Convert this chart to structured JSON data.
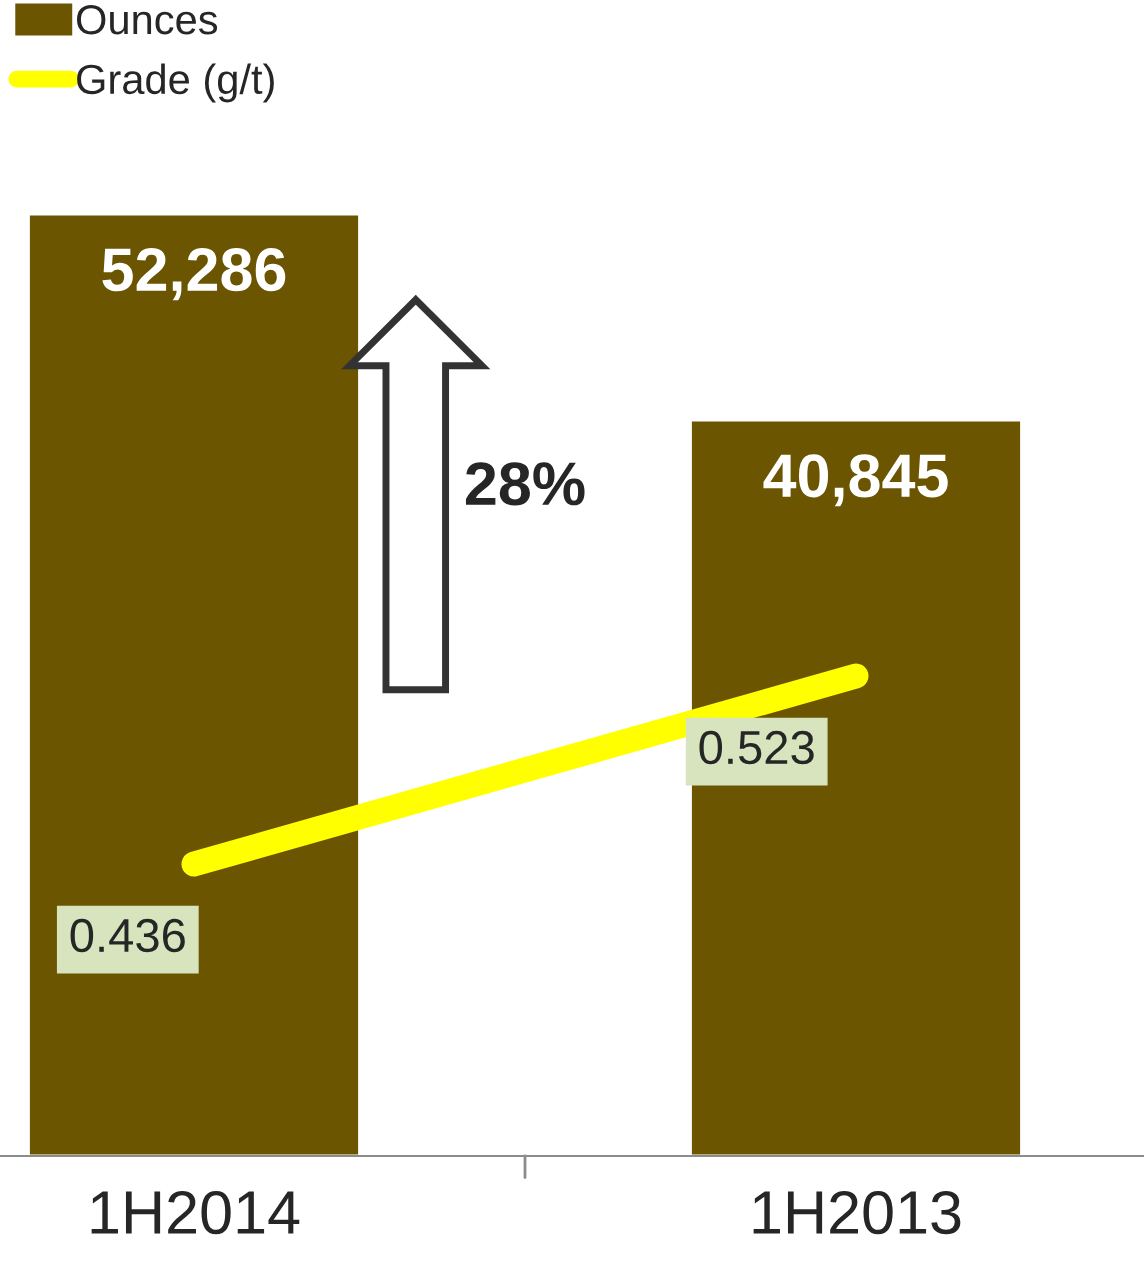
{
  "chart_data": {
    "type": "bar",
    "categories": [
      "1H2014",
      "1H2013"
    ],
    "series": [
      {
        "name": "Ounces",
        "color": "#6b5500",
        "values": [
          52286,
          40845
        ],
        "value_labels": [
          "52,286",
          "40,845"
        ]
      },
      {
        "name": "Grade (g/t)",
        "type": "line",
        "axis": "y2",
        "color": "#ffff00",
        "values": [
          0.436,
          0.523
        ],
        "value_labels": [
          "0.436",
          "0.523"
        ]
      }
    ],
    "tick_labels": "x",
    "grid": false,
    "legend": "top left",
    "marker": "none",
    "annotations": [
      "28%"
    ]
  }
}
